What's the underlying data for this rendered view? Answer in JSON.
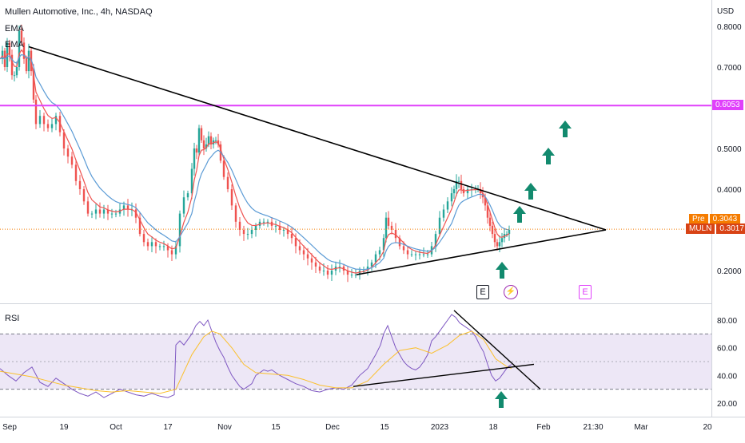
{
  "header": {
    "title": "Mullen Automotive, Inc., 4h, NASDAQ",
    "indicators": [
      "EMA",
      "EMA"
    ]
  },
  "price_axis": {
    "currency": "USD",
    "ticks": [
      "0.8000",
      "0.7000",
      "0.5000",
      "0.4000",
      "0.2000"
    ]
  },
  "badges": {
    "resistance": "0.6053",
    "pre_label": "Pre",
    "pre_value": "0.3043",
    "ticker_label": "MULN",
    "ticker_value": "0.3017"
  },
  "rsi": {
    "label": "RSI",
    "ticks": [
      "80.00",
      "60.00",
      "40.00",
      "20.00"
    ]
  },
  "time_axis": {
    "labels": [
      "Sep",
      "19",
      "Oct",
      "17",
      "Nov",
      "15",
      "Dec",
      "15",
      "2023",
      "18",
      "Feb",
      "21:30",
      "Mar",
      "20"
    ]
  },
  "events": [
    "E",
    "⚡",
    "E"
  ],
  "colors": {
    "up": "#26a69a",
    "down": "#ef5350",
    "ema_fast": "#ef5350",
    "ema_slow": "#5b9bd5",
    "resistance": "#e040fb",
    "current": "#f57c00",
    "arrow": "#128a6e",
    "rsi_line": "#7e57c2",
    "rsi_ma": "#fbc02d",
    "rsi_band": "#ede7f6"
  },
  "chart_data": [
    {
      "type": "candlestick",
      "title": "Mullen Automotive, Inc., 4h, NASDAQ",
      "ylim": [
        0.15,
        0.82
      ],
      "x_labels": [
        "Sep",
        "19",
        "Oct",
        "17",
        "Nov",
        "15",
        "Dec",
        "15",
        "2023",
        "18",
        "Feb",
        "21:30",
        "Mar",
        "20"
      ],
      "close_path": [
        [
          0,
          0.72
        ],
        [
          3,
          0.74
        ],
        [
          6,
          0.7
        ],
        [
          9,
          0.76
        ],
        [
          12,
          0.73
        ],
        [
          15,
          0.68
        ],
        [
          18,
          0.68
        ],
        [
          21,
          0.7
        ],
        [
          24,
          0.79
        ],
        [
          27,
          0.76
        ],
        [
          30,
          0.72
        ],
        [
          33,
          0.69
        ],
        [
          36,
          0.74
        ],
        [
          39,
          0.69
        ],
        [
          42,
          0.62
        ],
        [
          45,
          0.56
        ],
        [
          50,
          0.58
        ],
        [
          55,
          0.56
        ],
        [
          60,
          0.55
        ],
        [
          65,
          0.56
        ],
        [
          70,
          0.58
        ],
        [
          75,
          0.54
        ],
        [
          80,
          0.5
        ],
        [
          85,
          0.48
        ],
        [
          90,
          0.46
        ],
        [
          95,
          0.42
        ],
        [
          100,
          0.4
        ],
        [
          105,
          0.37
        ],
        [
          110,
          0.34
        ],
        [
          115,
          0.34
        ],
        [
          120,
          0.35
        ],
        [
          125,
          0.34
        ],
        [
          130,
          0.35
        ],
        [
          135,
          0.34
        ],
        [
          140,
          0.34
        ],
        [
          145,
          0.34
        ],
        [
          150,
          0.35
        ],
        [
          155,
          0.36
        ],
        [
          160,
          0.35
        ],
        [
          165,
          0.35
        ],
        [
          170,
          0.33
        ],
        [
          175,
          0.29
        ],
        [
          180,
          0.27
        ],
        [
          185,
          0.26
        ],
        [
          190,
          0.27
        ],
        [
          195,
          0.26
        ],
        [
          200,
          0.26
        ],
        [
          205,
          0.26
        ],
        [
          210,
          0.25
        ],
        [
          215,
          0.24
        ],
        [
          220,
          0.26
        ],
        [
          225,
          0.34
        ],
        [
          230,
          0.38
        ],
        [
          235,
          0.39
        ],
        [
          240,
          0.45
        ],
        [
          243,
          0.5
        ],
        [
          246,
          0.49
        ],
        [
          249,
          0.55
        ],
        [
          252,
          0.52
        ],
        [
          255,
          0.5
        ],
        [
          258,
          0.51
        ],
        [
          261,
          0.53
        ],
        [
          264,
          0.51
        ],
        [
          267,
          0.52
        ],
        [
          270,
          0.52
        ],
        [
          273,
          0.51
        ],
        [
          276,
          0.47
        ],
        [
          280,
          0.43
        ],
        [
          285,
          0.4
        ],
        [
          290,
          0.36
        ],
        [
          295,
          0.32
        ],
        [
          300,
          0.3
        ],
        [
          305,
          0.29
        ],
        [
          310,
          0.29
        ],
        [
          315,
          0.3
        ],
        [
          320,
          0.31
        ],
        [
          325,
          0.32
        ],
        [
          330,
          0.32
        ],
        [
          335,
          0.32
        ],
        [
          340,
          0.31
        ],
        [
          345,
          0.31
        ],
        [
          350,
          0.3
        ],
        [
          355,
          0.3
        ],
        [
          360,
          0.29
        ],
        [
          365,
          0.28
        ],
        [
          370,
          0.26
        ],
        [
          375,
          0.25
        ],
        [
          380,
          0.24
        ],
        [
          385,
          0.23
        ],
        [
          390,
          0.22
        ],
        [
          395,
          0.21
        ],
        [
          400,
          0.2
        ],
        [
          405,
          0.2
        ],
        [
          410,
          0.19
        ],
        [
          415,
          0.2
        ],
        [
          420,
          0.21
        ],
        [
          425,
          0.21
        ],
        [
          430,
          0.2
        ],
        [
          435,
          0.19
        ],
        [
          440,
          0.19
        ],
        [
          445,
          0.19
        ],
        [
          450,
          0.2
        ],
        [
          455,
          0.2
        ],
        [
          460,
          0.21
        ],
        [
          465,
          0.22
        ],
        [
          470,
          0.24
        ],
        [
          475,
          0.25
        ],
        [
          480,
          0.28
        ],
        [
          483,
          0.33
        ],
        [
          486,
          0.31
        ],
        [
          490,
          0.3
        ],
        [
          495,
          0.28
        ],
        [
          500,
          0.26
        ],
        [
          505,
          0.25
        ],
        [
          510,
          0.24
        ],
        [
          515,
          0.24
        ],
        [
          520,
          0.24
        ],
        [
          525,
          0.24
        ],
        [
          530,
          0.24
        ],
        [
          535,
          0.24
        ],
        [
          540,
          0.26
        ],
        [
          545,
          0.29
        ],
        [
          550,
          0.33
        ],
        [
          555,
          0.35
        ],
        [
          560,
          0.37
        ],
        [
          565,
          0.39
        ],
        [
          568,
          0.4
        ],
        [
          571,
          0.42
        ],
        [
          574,
          0.42
        ],
        [
          577,
          0.4
        ],
        [
          580,
          0.39
        ],
        [
          585,
          0.4
        ],
        [
          590,
          0.4
        ],
        [
          595,
          0.4
        ],
        [
          598,
          0.4
        ],
        [
          601,
          0.39
        ],
        [
          604,
          0.38
        ],
        [
          607,
          0.36
        ],
        [
          610,
          0.33
        ],
        [
          613,
          0.31
        ],
        [
          616,
          0.29
        ],
        [
          619,
          0.27
        ],
        [
          622,
          0.26
        ],
        [
          625,
          0.27
        ],
        [
          628,
          0.28
        ],
        [
          631,
          0.29
        ],
        [
          634,
          0.29
        ],
        [
          637,
          0.3
        ]
      ],
      "drawings": {
        "resistance_line": 0.6053,
        "current_price": 0.3017,
        "premarket_price": 0.3043,
        "triangle_upper": [
          [
            36,
            0.75
          ],
          [
            758,
            0.3
          ]
        ],
        "triangle_lower": [
          [
            446,
            0.19
          ],
          [
            758,
            0.3
          ]
        ],
        "target_arrows": 6
      }
    },
    {
      "type": "line",
      "title": "RSI",
      "ylim": [
        15,
        88
      ],
      "reference_levels": [
        70,
        50,
        30
      ],
      "trendlines": [
        [
          [
            568,
            87
          ],
          [
            676,
            30
          ]
        ],
        [
          [
            442,
            32
          ],
          [
            668,
            48
          ]
        ]
      ],
      "series": [
        {
          "values": [
            [
              0,
              45
            ],
            [
              10,
              40
            ],
            [
              20,
              36
            ],
            [
              30,
              42
            ],
            [
              40,
              46
            ],
            [
              50,
              35
            ],
            [
              60,
              32
            ],
            [
              70,
              38
            ],
            [
              80,
              34
            ],
            [
              90,
              30
            ],
            [
              100,
              27
            ],
            [
              110,
              25
            ],
            [
              120,
              28
            ],
            [
              130,
              24
            ],
            [
              140,
              27
            ],
            [
              150,
              30
            ],
            [
              160,
              28
            ],
            [
              170,
              26
            ],
            [
              180,
              25
            ],
            [
              190,
              27
            ],
            [
              200,
              25
            ],
            [
              210,
              24
            ],
            [
              218,
              26
            ],
            [
              220,
              62
            ],
            [
              225,
              65
            ],
            [
              230,
              62
            ],
            [
              235,
              66
            ],
            [
              240,
              70
            ],
            [
              245,
              76
            ],
            [
              250,
              79
            ],
            [
              255,
              76
            ],
            [
              260,
              80
            ],
            [
              265,
              72
            ],
            [
              270,
              64
            ],
            [
              275,
              58
            ],
            [
              280,
              53
            ],
            [
              285,
              46
            ],
            [
              290,
              40
            ],
            [
              295,
              36
            ],
            [
              300,
              32
            ],
            [
              305,
              30
            ],
            [
              310,
              32
            ],
            [
              315,
              34
            ],
            [
              320,
              40
            ],
            [
              325,
              42
            ],
            [
              330,
              44
            ],
            [
              335,
              43
            ],
            [
              340,
              44
            ],
            [
              345,
              42
            ],
            [
              350,
              40
            ],
            [
              360,
              37
            ],
            [
              370,
              34
            ],
            [
              380,
              32
            ],
            [
              390,
              29
            ],
            [
              400,
              28
            ],
            [
              410,
              30
            ],
            [
              420,
              31
            ],
            [
              430,
              30
            ],
            [
              440,
              33
            ],
            [
              450,
              40
            ],
            [
              460,
              45
            ],
            [
              470,
              55
            ],
            [
              476,
              62
            ],
            [
              480,
              70
            ],
            [
              485,
              76
            ],
            [
              490,
              68
            ],
            [
              495,
              60
            ],
            [
              500,
              55
            ],
            [
              505,
              50
            ],
            [
              510,
              47
            ],
            [
              515,
              45
            ],
            [
              520,
              44
            ],
            [
              525,
              46
            ],
            [
              530,
              50
            ],
            [
              535,
              55
            ],
            [
              540,
              65
            ],
            [
              545,
              68
            ],
            [
              550,
              72
            ],
            [
              555,
              76
            ],
            [
              560,
              80
            ],
            [
              565,
              84
            ],
            [
              570,
              82
            ],
            [
              575,
              78
            ],
            [
              580,
              76
            ],
            [
              585,
              74
            ],
            [
              590,
              72
            ],
            [
              595,
              68
            ],
            [
              600,
              62
            ],
            [
              605,
              57
            ],
            [
              610,
              48
            ],
            [
              615,
              40
            ],
            [
              620,
              36
            ],
            [
              625,
              38
            ],
            [
              630,
              42
            ],
            [
              635,
              46
            ],
            [
              640,
              48
            ]
          ]
        },
        {
          "values": [
            [
              0,
              43
            ],
            [
              20,
              41
            ],
            [
              40,
              39
            ],
            [
              60,
              36
            ],
            [
              80,
              33
            ],
            [
              100,
              31
            ],
            [
              120,
              29
            ],
            [
              140,
              28
            ],
            [
              160,
              29
            ],
            [
              180,
              28
            ],
            [
              200,
              27
            ],
            [
              220,
              30
            ],
            [
              240,
              55
            ],
            [
              255,
              68
            ],
            [
              265,
              72
            ],
            [
              275,
              70
            ],
            [
              290,
              60
            ],
            [
              305,
              48
            ],
            [
              320,
              42
            ],
            [
              340,
              41
            ],
            [
              360,
              40
            ],
            [
              380,
              37
            ],
            [
              400,
              33
            ],
            [
              420,
              31
            ],
            [
              440,
              31
            ],
            [
              460,
              36
            ],
            [
              480,
              48
            ],
            [
              500,
              58
            ],
            [
              520,
              60
            ],
            [
              540,
              56
            ],
            [
              560,
              62
            ],
            [
              575,
              69
            ],
            [
              590,
              72
            ],
            [
              605,
              66
            ],
            [
              620,
              52
            ],
            [
              635,
              46
            ],
            [
              640,
              45
            ]
          ]
        }
      ]
    }
  ]
}
